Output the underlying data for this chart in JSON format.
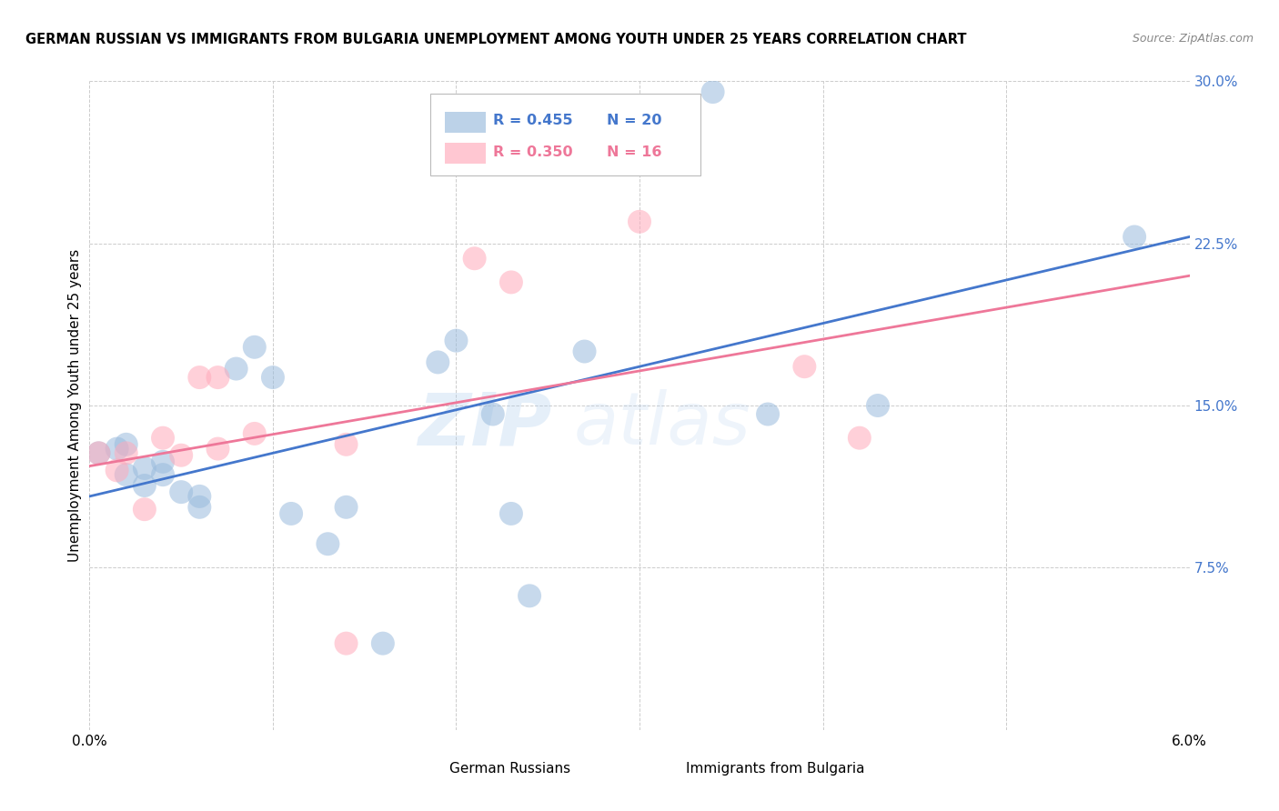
{
  "title": "GERMAN RUSSIAN VS IMMIGRANTS FROM BULGARIA UNEMPLOYMENT AMONG YOUTH UNDER 25 YEARS CORRELATION CHART",
  "source": "Source: ZipAtlas.com",
  "ylabel": "Unemployment Among Youth under 25 years",
  "xlim": [
    0.0,
    0.06
  ],
  "ylim": [
    0.0,
    0.3
  ],
  "xticks": [
    0.0,
    0.01,
    0.02,
    0.03,
    0.04,
    0.05,
    0.06
  ],
  "xticklabels": [
    "0.0%",
    "",
    "",
    "",
    "",
    "",
    "6.0%"
  ],
  "yticks": [
    0.0,
    0.075,
    0.15,
    0.225,
    0.3
  ],
  "yticklabels": [
    "",
    "7.5%",
    "15.0%",
    "22.5%",
    "30.0%"
  ],
  "watermark": "ZIPatlas",
  "blue_color": "#99BBDD",
  "pink_color": "#FFAABB",
  "trendline_blue": "#4477CC",
  "trendline_pink": "#EE7799",
  "tick_color": "#4477CC",
  "blue_scatter": [
    [
      0.0005,
      0.128
    ],
    [
      0.0015,
      0.13
    ],
    [
      0.002,
      0.132
    ],
    [
      0.002,
      0.118
    ],
    [
      0.003,
      0.121
    ],
    [
      0.003,
      0.113
    ],
    [
      0.004,
      0.124
    ],
    [
      0.004,
      0.118
    ],
    [
      0.005,
      0.11
    ],
    [
      0.006,
      0.103
    ],
    [
      0.006,
      0.108
    ],
    [
      0.008,
      0.167
    ],
    [
      0.009,
      0.177
    ],
    [
      0.01,
      0.163
    ],
    [
      0.011,
      0.1
    ],
    [
      0.013,
      0.086
    ],
    [
      0.014,
      0.103
    ],
    [
      0.019,
      0.17
    ],
    [
      0.02,
      0.18
    ],
    [
      0.022,
      0.146
    ],
    [
      0.023,
      0.1
    ],
    [
      0.027,
      0.175
    ],
    [
      0.034,
      0.295
    ],
    [
      0.037,
      0.146
    ],
    [
      0.043,
      0.15
    ],
    [
      0.016,
      0.04
    ],
    [
      0.057,
      0.228
    ],
    [
      0.024,
      0.062
    ]
  ],
  "pink_scatter": [
    [
      0.0005,
      0.128
    ],
    [
      0.0015,
      0.12
    ],
    [
      0.002,
      0.128
    ],
    [
      0.003,
      0.102
    ],
    [
      0.004,
      0.135
    ],
    [
      0.005,
      0.127
    ],
    [
      0.006,
      0.163
    ],
    [
      0.007,
      0.163
    ],
    [
      0.007,
      0.13
    ],
    [
      0.009,
      0.137
    ],
    [
      0.014,
      0.132
    ],
    [
      0.021,
      0.218
    ],
    [
      0.023,
      0.207
    ],
    [
      0.03,
      0.235
    ],
    [
      0.039,
      0.168
    ],
    [
      0.042,
      0.135
    ],
    [
      0.014,
      0.04
    ]
  ],
  "blue_trendline_x": [
    0.0,
    0.06
  ],
  "blue_trendline_y": [
    0.108,
    0.228
  ],
  "pink_trendline_x": [
    0.0,
    0.06
  ],
  "pink_trendline_y": [
    0.122,
    0.21
  ],
  "background_color": "#FFFFFF",
  "grid_color": "#CCCCCC"
}
